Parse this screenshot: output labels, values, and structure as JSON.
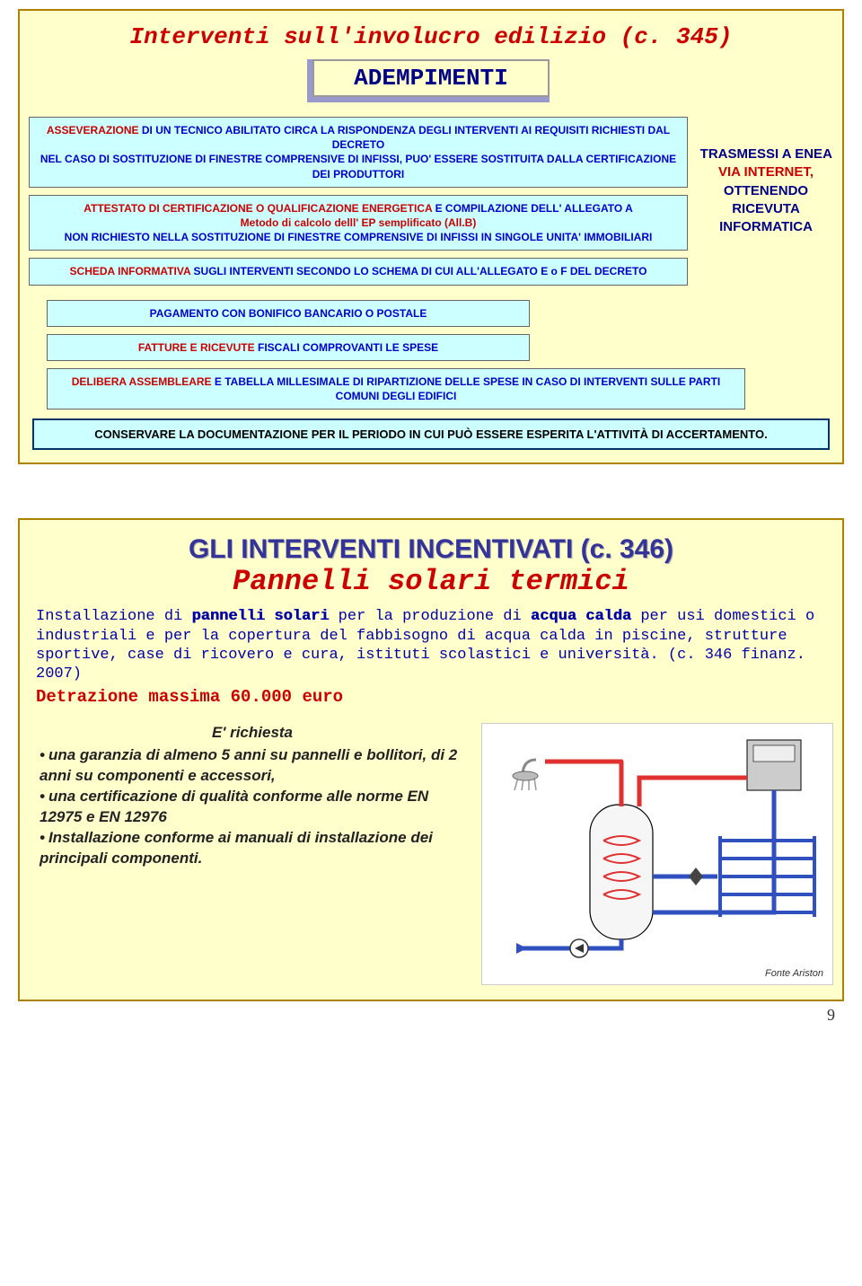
{
  "slide1": {
    "title": "Interventi sull'involucro edilizio (c. 345)",
    "button": "ADEMPIMENTI",
    "box1": {
      "line1a": "ASSEVERAZIONE",
      "line1b": " DI UN TECNICO ABILITATO CIRCA LA RISPONDENZA DEGLI INTERVENTI AI REQUISITI RICHIESTI DAL DECRETO",
      "line2a": "NEL CASO DI SOSTITUZIONE DI FINESTRE COMPRENSIVE DI INFISSI, PUO' ESSERE SOSTITUITA DALLA CERTIFICAZIONE DEI PRODUTTORI"
    },
    "box2": {
      "l1a": "ATTESTATO DI CERTIFICAZIONE O QUALIFICAZIONE ENERGETICA",
      "l1b": " E COMPILAZIONE DELL' ALLEGATO A",
      "l2": "Metodo di calcolo delll' EP semplificato (All.B)",
      "l3": "NON RICHIESTO NELLA SOSTITUZIONE DI FINESTRE COMPRENSIVE DI INFISSI IN SINGOLE UNITA' IMMOBILIARI"
    },
    "box3": {
      "l1a": "SCHEDA INFORMATIVA",
      "l1b": " SUGLI INTERVENTI SECONDO LO SCHEMA DI CUI ALL'ALLEGATO E o F  DEL DECRETO"
    },
    "side": {
      "l1": "TRASMESSI A ENEA ",
      "l2": "VIA INTERNET,",
      "l3": " OTTENENDO RICEVUTA INFORMATICA"
    },
    "box4": "PAGAMENTO CON BONIFICO BANCARIO O POSTALE",
    "box5a": "FATTURE E RICEVUTE ",
    "box5b": "FISCALI COMPROVANTI LE SPESE",
    "box6a": "DELIBERA ASSEMBLEARE",
    "box6b": " E TABELLA MILLESIMALE DI RIPARTIZIONE DELLE SPESE IN CASO DI INTERVENTI SULLE PARTI COMUNI DEGLI EDIFICI",
    "box7": "CONSERVARE LA DOCUMENTAZIONE PER IL PERIODO IN CUI PUÒ ESSERE ESPERITA L'ATTIVITÀ DI ACCERTAMENTO."
  },
  "slide2": {
    "title": "GLI INTERVENTI INCENTIVATI (c. 346)",
    "subtitle": "Pannelli solari termici",
    "para": {
      "p1a": "Installazione di ",
      "p1b": "pannelli solari",
      "p1c": " per la produzione di ",
      "p1d": "acqua calda",
      "p1e": " per usi domestici o industriali e per la copertura del fabbisogno di acqua calda in piscine, strutture sportive, case di ricovero e cura, istituti scolastici e università. (c. 346 finanz. 2007)"
    },
    "detr": "Detrazione massima 60.000 euro",
    "req": {
      "lead": "E' richiesta",
      "i1": "una garanzia di almeno 5 anni su pannelli e bollitori, di 2 anni su componenti e accessori,",
      "i2": "una certificazione di qualità conforme alle norme EN 12975 e EN 12976",
      "i3": "Installazione conforme ai manuali di installazione dei principali componenti."
    },
    "caption": "Fonte Ariston",
    "diagram": {
      "colors": {
        "hot": "#e03030",
        "cold": "#3050c0",
        "boiler": "#cccccc",
        "tank": "#f6f6f6",
        "outline": "#000000",
        "radiator": "#3050c0"
      },
      "stroke_w": 5
    }
  },
  "page_number": "9"
}
